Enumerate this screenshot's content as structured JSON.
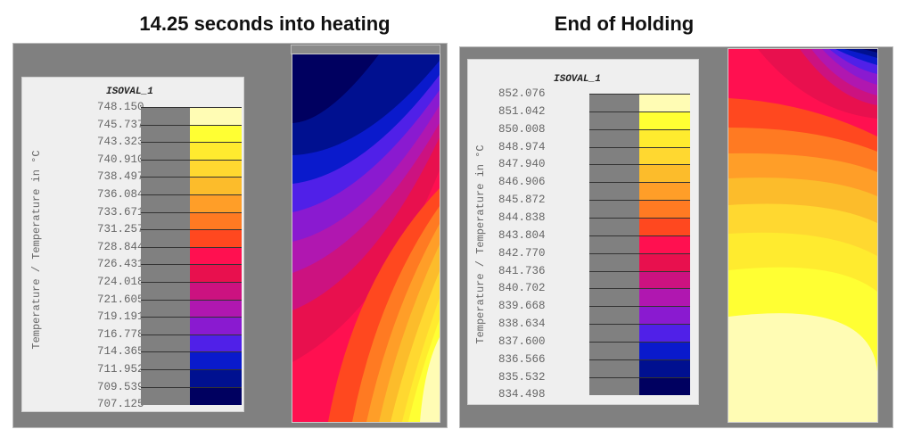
{
  "colors": [
    "#FFFCB4",
    "#FFFF33",
    "#FFEB2F",
    "#FFD830",
    "#FCBC2B",
    "#FF9E28",
    "#FF7A22",
    "#FF481F",
    "#FF1050",
    "#E8104E",
    "#CC1280",
    "#B017B0",
    "#8A1AD0",
    "#5020E8",
    "#0A1ACC",
    "#001090",
    "#000060"
  ],
  "panels": [
    {
      "title": "14.25 seconds into heating",
      "legend_title": "ISOVAL_1",
      "axis_label": "Temperature / Temperature in °C",
      "levels": [
        "748.150",
        "745.737",
        "743.323",
        "740.910",
        "738.497",
        "736.084",
        "733.671",
        "731.257",
        "728.844",
        "726.431",
        "724.018",
        "721.605",
        "719.191",
        "716.778",
        "714.365",
        "711.952",
        "709.539",
        "707.125"
      ]
    },
    {
      "title": "End of Holding",
      "legend_title": "ISOVAL_1",
      "axis_label": "Temperature / Temperature in °C",
      "levels": [
        "852.076",
        "851.042",
        "850.008",
        "848.974",
        "847.940",
        "846.906",
        "845.872",
        "844.838",
        "843.804",
        "842.770",
        "841.736",
        "840.702",
        "839.668",
        "838.634",
        "837.600",
        "836.566",
        "835.532",
        "834.498"
      ]
    }
  ]
}
